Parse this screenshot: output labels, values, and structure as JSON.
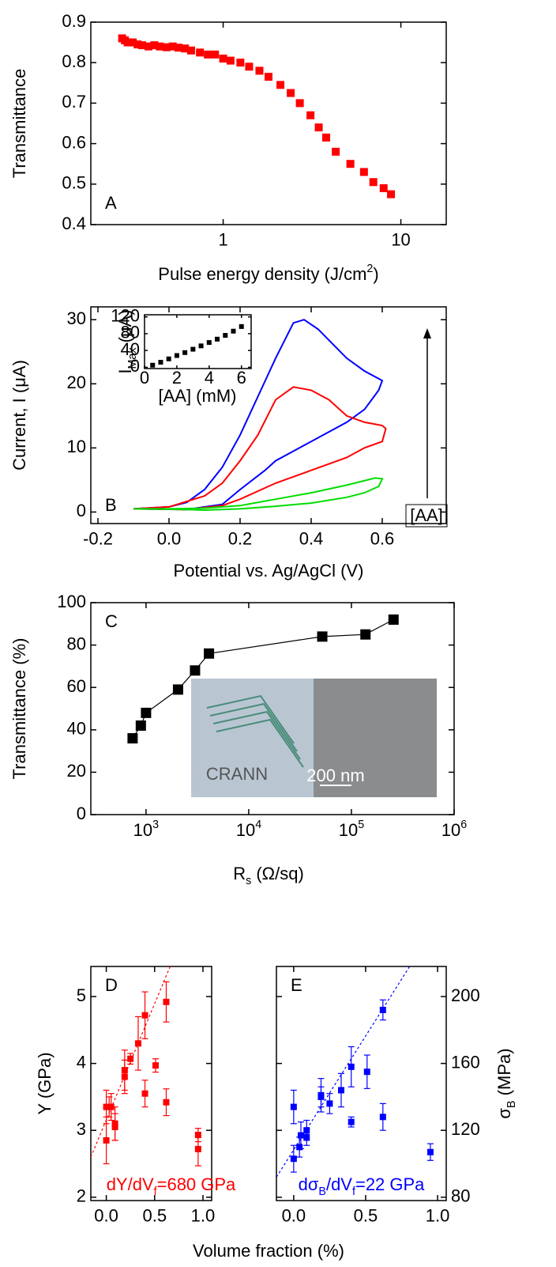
{
  "chart_data": [
    {
      "type": "scatter",
      "label": "A",
      "color": "#ff0000",
      "xlog": true,
      "x": [
        0.27,
        0.28,
        0.29,
        0.31,
        0.33,
        0.35,
        0.38,
        0.41,
        0.44,
        0.48,
        0.52,
        0.56,
        0.61,
        0.66,
        0.74,
        0.82,
        0.9,
        1.0,
        1.1,
        1.25,
        1.4,
        1.6,
        1.8,
        2.1,
        2.4,
        2.7,
        3.1,
        3.45,
        3.8,
        4.3,
        5.2,
        6.2,
        7.0,
        8.0,
        8.8
      ],
      "values": [
        0.86,
        0.855,
        0.85,
        0.85,
        0.845,
        0.843,
        0.84,
        0.843,
        0.84,
        0.838,
        0.84,
        0.837,
        0.835,
        0.83,
        0.825,
        0.82,
        0.82,
        0.81,
        0.805,
        0.8,
        0.79,
        0.78,
        0.765,
        0.745,
        0.725,
        0.7,
        0.67,
        0.64,
        0.615,
        0.58,
        0.55,
        0.53,
        0.505,
        0.49,
        0.475
      ],
      "xlim": [
        0.18,
        18
      ],
      "xticks": [
        1,
        10
      ],
      "ylim": [
        0.4,
        0.9
      ],
      "yticks": [
        0.4,
        0.5,
        0.6,
        0.7,
        0.8,
        0.9
      ],
      "xlabel": [
        {
          "t": "Pulse energy density (J/cm"
        },
        {
          "t": "2",
          "sup": true
        },
        {
          "t": ")"
        }
      ],
      "ylabel": "Transmittance"
    },
    {
      "type": "line",
      "label": "B",
      "series": [
        {
          "color": "#0000ff",
          "x": [
            -0.1,
            0,
            0.05,
            0.1,
            0.15,
            0.2,
            0.25,
            0.3,
            0.35,
            0.38,
            0.42,
            0.5,
            0.55,
            0.6,
            0.59,
            0.55,
            0.5,
            0.4,
            0.3,
            0.27,
            0.2,
            0.15,
            0.05,
            -0.1
          ],
          "values": [
            0.5,
            0.8,
            1.5,
            3.5,
            7,
            12,
            18,
            24,
            29.5,
            30,
            28.5,
            24,
            22,
            20.5,
            19,
            16,
            14,
            11,
            8,
            6.5,
            3.5,
            1.2,
            0.4,
            0.5
          ]
        },
        {
          "color": "#ff0000",
          "x": [
            -0.1,
            0,
            0.1,
            0.15,
            0.2,
            0.25,
            0.3,
            0.35,
            0.4,
            0.45,
            0.5,
            0.55,
            0.6,
            0.61,
            0.6,
            0.55,
            0.5,
            0.4,
            0.3,
            0.2,
            0.15,
            0.05,
            -0.1
          ],
          "values": [
            0.5,
            0.8,
            2.5,
            4.5,
            8,
            12,
            17.5,
            19.5,
            19,
            17.5,
            15,
            14,
            13.5,
            13,
            11,
            10,
            8.5,
            6.5,
            4.5,
            2,
            1,
            0.4,
            0.5
          ]
        },
        {
          "color": "#00dd00",
          "x": [
            -0.1,
            0,
            0.1,
            0.2,
            0.3,
            0.4,
            0.5,
            0.58,
            0.6,
            0.59,
            0.55,
            0.5,
            0.4,
            0.3,
            0.2,
            0.1,
            0.05,
            -0.1
          ],
          "values": [
            0.5,
            0.5,
            0.6,
            1,
            2,
            3,
            4.2,
            5.3,
            5.2,
            4,
            3,
            2.3,
            1.4,
            0.9,
            0.5,
            0.3,
            0.4,
            0.5
          ]
        }
      ],
      "xlim": [
        -0.22,
        0.78
      ],
      "xticks": [
        -0.2,
        {
          "value": 0,
          "label": "0.0"
        },
        0.2,
        0.4,
        0.6
      ],
      "ylim": [
        -1.8,
        32
      ],
      "yticks": [
        0,
        10,
        20,
        30
      ],
      "xlabel": "Potential vs. Ag/AgCl (V)",
      "ylabel": "Current, I (μA)",
      "annotation": "[AA]",
      "inset": {
        "type": "scatter",
        "color": "#000000",
        "x": [
          0.5,
          1,
          1.5,
          2,
          2.5,
          3,
          3.5,
          4,
          4.5,
          5,
          5.5,
          6
        ],
        "values": [
          5,
          12,
          20,
          28,
          35,
          43,
          51,
          59,
          67,
          76,
          86,
          97
        ],
        "xlim": [
          0,
          6.6
        ],
        "xticks": [
          0,
          2,
          4,
          6
        ],
        "ylim": [
          -3,
          125
        ],
        "yticks": [
          0,
          40,
          80,
          120
        ],
        "xlabel": "[AA] (mM)",
        "ylabel": [
          {
            "t": "I"
          },
          {
            "t": "Max",
            "sub": true
          },
          {
            "t": " (μA)"
          }
        ]
      }
    },
    {
      "type": "line",
      "label": "C",
      "color": "#000000",
      "xlog": true,
      "x": [
        740,
        890,
        1000,
        2050,
        3000,
        4100,
        52000,
        137000,
        257000
      ],
      "values": [
        36,
        42,
        48,
        59,
        68,
        76,
        84,
        85,
        92
      ],
      "xlim": [
        290,
        1000000
      ],
      "xticks": [
        {
          "value": 1000,
          "label": {
            "base": "10",
            "exp": "3"
          }
        },
        {
          "value": 10000,
          "label": {
            "base": "10",
            "exp": "4"
          }
        },
        {
          "value": 100000,
          "label": {
            "base": "10",
            "exp": "5"
          }
        },
        {
          "value": 1000000,
          "label": {
            "base": "10",
            "exp": "6"
          }
        }
      ],
      "ylim": [
        0,
        100
      ],
      "yticks": [
        0,
        20,
        40,
        60,
        80,
        100
      ],
      "xlabel": [
        {
          "t": "R"
        },
        {
          "t": "s",
          "sub": true
        },
        {
          "t": " (Ω/sq)"
        }
      ],
      "ylabel": "Transmittance (%)",
      "image_texts": [
        "CRANN",
        "200 nm"
      ]
    },
    {
      "type": "errorbar",
      "label": "D",
      "color": "#ff0000",
      "x": [
        0,
        0,
        0.03,
        0.05,
        0.09,
        0.09,
        0.19,
        0.19,
        0.25,
        0.33,
        0.4,
        0.4,
        0.51,
        0.62,
        0.62,
        0.95,
        0.95
      ],
      "values": [
        3.35,
        2.85,
        3.35,
        3.35,
        3.1,
        3.05,
        3.9,
        3.8,
        4.07,
        4.3,
        4.72,
        3.55,
        3.97,
        4.92,
        3.42,
        2.93,
        2.72
      ],
      "errors": [
        0.25,
        0.35,
        0.15,
        0.2,
        0.25,
        0.2,
        0.3,
        0.25,
        0.08,
        0.4,
        0.35,
        0.2,
        0.1,
        0.3,
        0.2,
        0.1,
        0.25
      ],
      "fit": {
        "x": [
          -0.16,
          0.66
        ],
        "values": [
          2.6,
          5.45
        ]
      },
      "xlim": [
        -0.16,
        1.09
      ],
      "xticks": [
        {
          "value": 0,
          "label": "0.0"
        },
        0.5,
        {
          "value": 1,
          "label": "1.0"
        }
      ],
      "ylim": [
        1.95,
        5.45
      ],
      "yticks": [
        2,
        3,
        4,
        5
      ],
      "ylabel": "Y (GPa)",
      "xlabel": "Volume fraction (%)",
      "annotation": [
        {
          "t": "dY/dV"
        },
        {
          "t": "f",
          "sub": true
        },
        {
          "t": "=680 GPa"
        }
      ]
    },
    {
      "type": "errorbar",
      "label": "E",
      "color": "#0000ff",
      "x": [
        0,
        0,
        0.04,
        0.05,
        0.09,
        0.09,
        0.19,
        0.19,
        0.25,
        0.33,
        0.4,
        0.4,
        0.51,
        0.62,
        0.62,
        0.95
      ],
      "values": [
        134,
        103,
        110,
        117,
        120,
        116,
        141,
        140,
        136,
        144,
        158,
        125,
        155,
        192,
        128,
        107
      ],
      "errors": [
        10,
        8,
        6,
        8,
        6,
        5,
        10,
        6,
        6,
        10,
        12,
        3,
        10,
        6,
        8,
        5
      ],
      "fit": {
        "x": [
          -0.12,
          0.82
        ],
        "values": [
          92,
          220
        ]
      },
      "xlim": [
        -0.12,
        1.06
      ],
      "xticks": [
        {
          "value": 0,
          "label": "0.0"
        },
        0.5,
        {
          "value": 1,
          "label": "1.0"
        }
      ],
      "y2lim": [
        78,
        218
      ],
      "y2ticks": [
        80,
        120,
        160,
        200
      ],
      "y2label": [
        {
          "t": "σ"
        },
        {
          "t": "B",
          "sub": true
        },
        {
          "t": " (MPa)"
        }
      ],
      "annotation": [
        {
          "t": "dσ"
        },
        {
          "t": "B",
          "sub": true
        },
        {
          "t": "/dV"
        },
        {
          "t": "f",
          "sub": true
        },
        {
          "t": "=22 GPa"
        }
      ]
    }
  ]
}
